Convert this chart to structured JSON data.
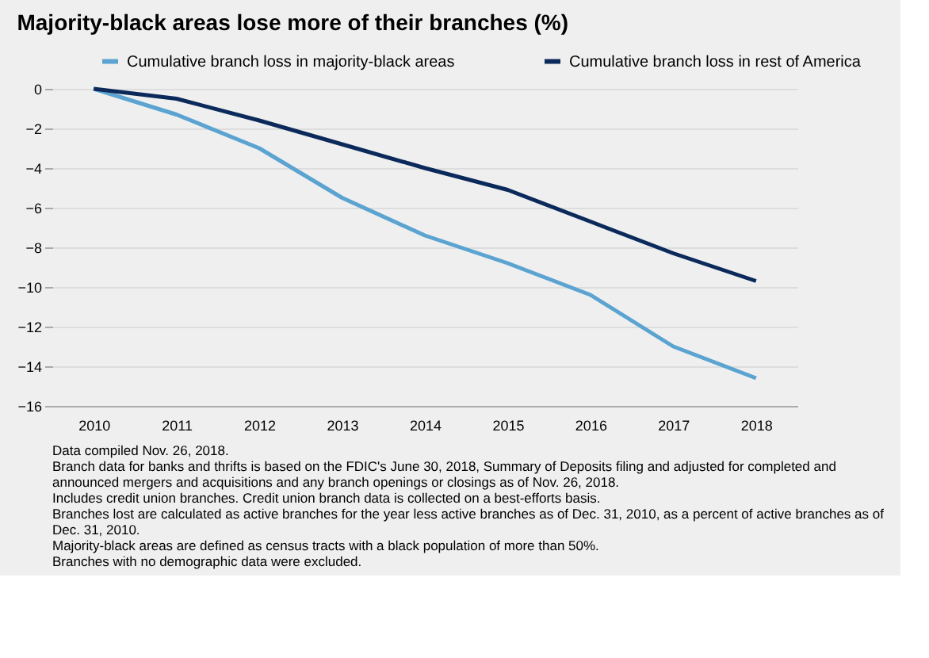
{
  "chart_data": {
    "type": "line",
    "title": "Majority-black areas lose more of their branches (%)",
    "categories": [
      "2010",
      "2011",
      "2012",
      "2013",
      "2014",
      "2015",
      "2016",
      "2017",
      "2018"
    ],
    "series": [
      {
        "name": "Cumulative branch loss in majority-black areas",
        "color": "#5ba3d0",
        "values": [
          0,
          -1.3,
          -3.0,
          -5.5,
          -7.4,
          -8.8,
          -10.4,
          -13.0,
          -14.6
        ]
      },
      {
        "name": "Cumulative branch loss in rest of America",
        "color": "#0b2a5b",
        "values": [
          0,
          -0.5,
          -1.6,
          -2.8,
          -4.0,
          -5.1,
          -6.7,
          -8.3,
          -9.7
        ]
      }
    ],
    "ylim": [
      -16,
      0
    ],
    "yticks": [
      -16,
      -14,
      -12,
      -10,
      -8,
      -6,
      -4,
      -2,
      0
    ],
    "grid": "y",
    "legend": "top",
    "marker": "none",
    "line_style": "solid",
    "annotations": [
      "Data compiled Nov. 26, 2018.",
      "Branch data for banks and thrifts is based on the FDIC's June 30, 2018, Summary of Deposits filing and adjusted for completed and",
      "announced mergers and acquisitions and any branch openings or closings as of Nov. 26, 2018.",
      "Includes credit union branches. Credit union branch data is collected on a best-efforts basis.",
      "Branches lost are calculated as active branches for the year less active branches as of Dec. 31, 2010, as a percent of active branches as of",
      "Dec. 31, 2010.",
      "Majority-black areas are defined as census tracts with a black population of more than 50%.",
      "Branches with no demographic data were excluded."
    ]
  }
}
